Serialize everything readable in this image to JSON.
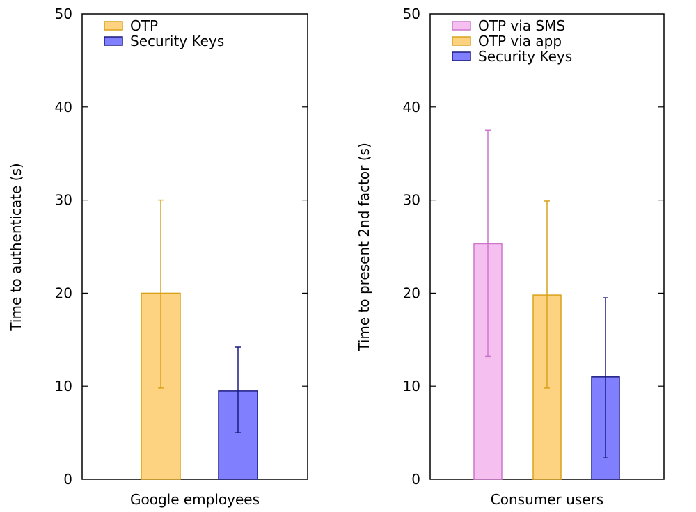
{
  "chart_data": [
    {
      "type": "bar",
      "xlabel": "Google employees",
      "ylabel": "Time to authenticate (s)",
      "ylim": [
        0,
        50
      ],
      "yticks": [
        "0",
        "10",
        "20",
        "30",
        "40",
        "50"
      ],
      "legend": "top-left",
      "series": [
        {
          "name": "OTP",
          "value": 20,
          "error_low": 9.8,
          "error_high": 30,
          "fill": "#fdd280",
          "stroke": "#d9a21b"
        },
        {
          "name": "Security Keys",
          "value": 9.5,
          "error_low": 5,
          "error_high": 14.2,
          "fill": "#8080ff",
          "stroke": "#1a1a80"
        }
      ]
    },
    {
      "type": "bar",
      "xlabel": "Consumer users",
      "ylabel": "Time to present 2nd factor (s)",
      "ylim": [
        0,
        50
      ],
      "yticks": [
        "0",
        "10",
        "20",
        "30",
        "40",
        "50"
      ],
      "legend": "top-left",
      "series": [
        {
          "name": "OTP via SMS",
          "value": 25.3,
          "error_low": 13.2,
          "error_high": 37.5,
          "fill": "#f5c0f0",
          "stroke": "#cc77cc"
        },
        {
          "name": "OTP via app",
          "value": 19.8,
          "error_low": 9.8,
          "error_high": 29.9,
          "fill": "#fdd280",
          "stroke": "#d9a21b"
        },
        {
          "name": "Security Keys",
          "value": 11,
          "error_low": 2.3,
          "error_high": 19.5,
          "fill": "#8080ff",
          "stroke": "#1a1a80"
        }
      ]
    }
  ]
}
